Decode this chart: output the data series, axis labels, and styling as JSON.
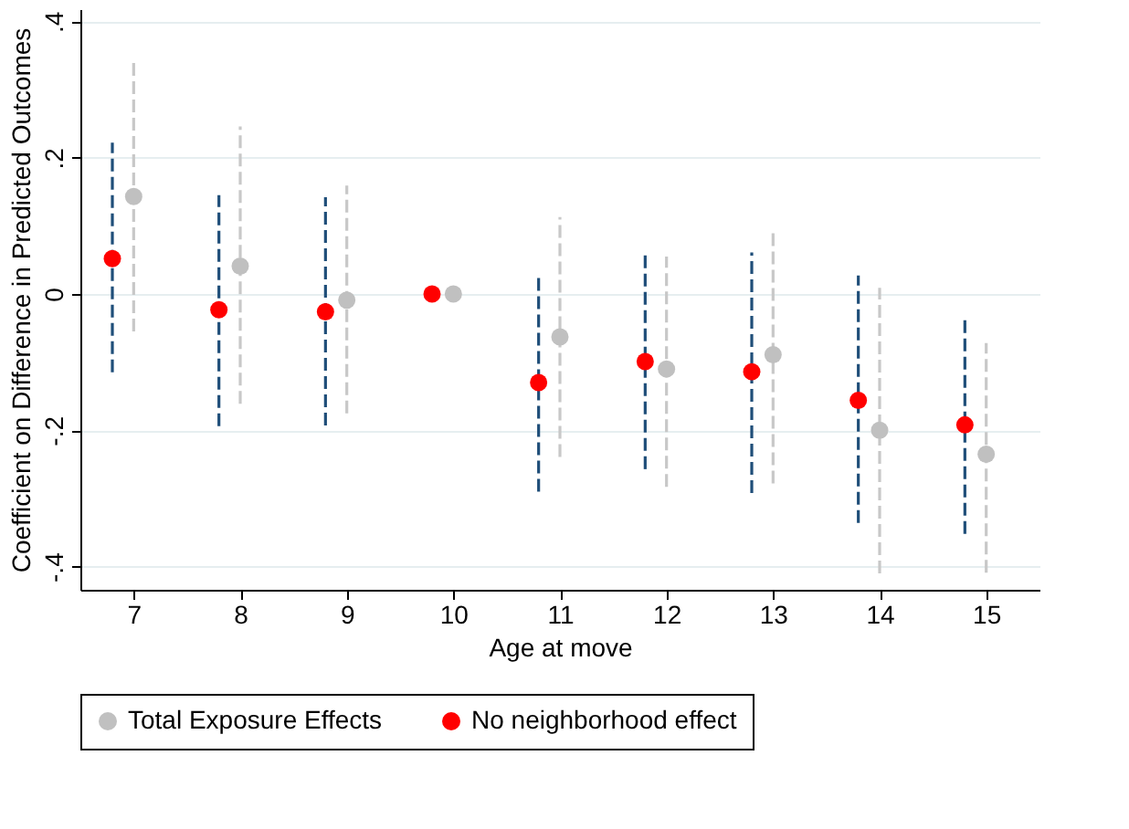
{
  "chart_data": {
    "type": "scatter",
    "xlabel": "Age at move",
    "ylabel": "Coefficient on Difference in Predicted Outcomes",
    "xlim": [
      6.5,
      15.5
    ],
    "xticks": [
      7,
      8,
      9,
      10,
      11,
      12,
      13,
      14,
      15
    ],
    "ylim": [
      -0.434,
      0.418
    ],
    "yticks": [
      {
        "value": -0.4,
        "label": "-.4"
      },
      {
        "value": -0.2,
        "label": "-.2"
      },
      0,
      {
        "value": 0.2,
        "label": ".2"
      },
      {
        "value": 0.4,
        "label": ".4"
      }
    ],
    "grid": "y",
    "legend": "bottom",
    "marker": "circle",
    "line_style": "dashed",
    "series": [
      {
        "name": "Total Exposure Effects",
        "color": "#c0c0c0",
        "x": [
          7,
          8,
          9,
          10,
          11,
          12,
          13,
          14,
          15
        ],
        "values": [
          0.143,
          0.041,
          -0.009,
          0,
          -0.063,
          -0.11,
          -0.089,
          -0.2,
          -0.235
        ],
        "errors": [
          [
            -0.055,
            0.34
          ],
          [
            -0.161,
            0.246
          ],
          [
            -0.175,
            0.159
          ],
          null,
          [
            -0.239,
            0.113
          ],
          [
            -0.283,
            0.055
          ],
          [
            -0.278,
            0.095
          ],
          [
            -0.41,
            0.009
          ],
          [
            -0.409,
            -0.072
          ]
        ]
      },
      {
        "name": "No neighborhood effect",
        "color": "#ff0000",
        "x": [
          6.8,
          7.8,
          8.8,
          9.8,
          10.8,
          11.8,
          12.8,
          13.8,
          14.8
        ],
        "values": [
          0.052,
          -0.023,
          -0.026,
          0,
          -0.13,
          -0.099,
          -0.114,
          -0.156,
          -0.192
        ],
        "errors": [
          [
            -0.115,
            0.222
          ],
          [
            -0.194,
            0.145
          ],
          [
            -0.193,
            0.142
          ],
          null,
          [
            -0.29,
            0.031
          ],
          [
            -0.257,
            0.059
          ],
          [
            -0.292,
            0.061
          ],
          [
            -0.336,
            0.027
          ],
          [
            -0.352,
            -0.033
          ]
        ]
      }
    ]
  }
}
